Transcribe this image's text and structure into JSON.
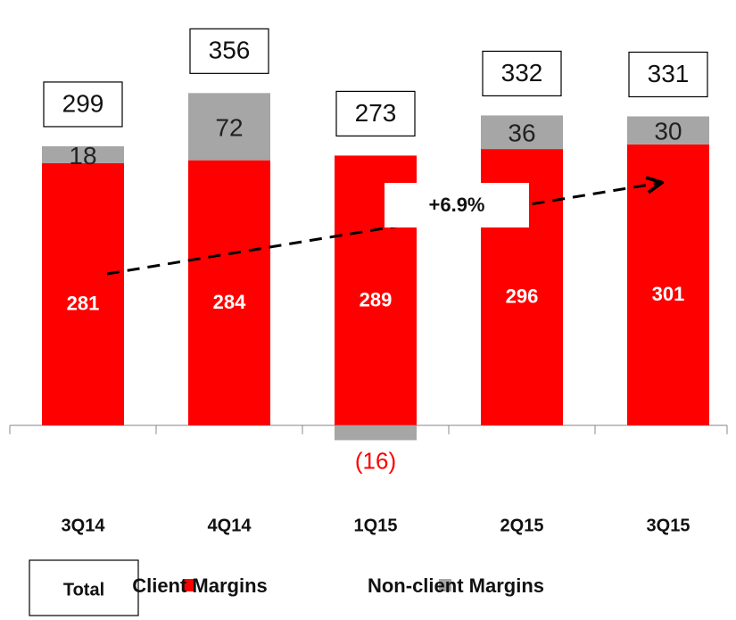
{
  "chart_data": {
    "type": "stacked_bar",
    "categories": [
      "3Q14",
      "4Q14",
      "1Q15",
      "2Q15",
      "3Q15"
    ],
    "series": [
      {
        "name": "Client Margins",
        "color": "#ff0000",
        "values": [
          281,
          284,
          289,
          296,
          301
        ]
      },
      {
        "name": "Non-client Margins",
        "color": "#a6a6a6",
        "values": [
          18,
          72,
          -16,
          36,
          30
        ],
        "value_labels": [
          "18",
          "72",
          "(16)",
          "36",
          "30"
        ]
      }
    ],
    "totals_name": "Total",
    "totals": [
      299,
      356,
      273,
      332,
      331
    ],
    "annotation": "+6.9%",
    "ylim": [
      -50,
      450
    ]
  }
}
